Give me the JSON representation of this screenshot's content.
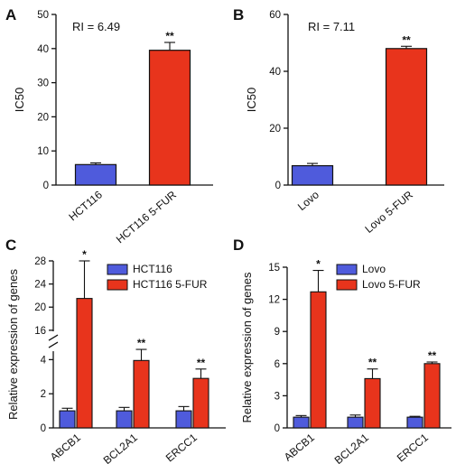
{
  "chart_data": [
    {
      "panel": "A",
      "type": "bar",
      "categories": [
        "HCT116",
        "HCT116 5-FUR"
      ],
      "values": [
        6.0,
        39.5
      ],
      "errors": [
        0.5,
        2.3
      ],
      "significance": [
        "",
        "**"
      ],
      "colors": [
        "#4f5bdc",
        "#e8341c"
      ],
      "ylabel": "IC50",
      "ylim": [
        0,
        50
      ],
      "yticks": [
        0,
        10,
        20,
        30,
        40,
        50
      ],
      "annotation": "RI = 6.49",
      "grid": false
    },
    {
      "panel": "B",
      "type": "bar",
      "categories": [
        "Lovo",
        "Lovo 5-FUR"
      ],
      "values": [
        6.8,
        48.0
      ],
      "errors": [
        0.8,
        0.8
      ],
      "significance": [
        "",
        "**"
      ],
      "colors": [
        "#4f5bdc",
        "#e8341c"
      ],
      "ylabel": "IC50",
      "ylim": [
        0,
        60
      ],
      "yticks": [
        0,
        20,
        40,
        60
      ],
      "annotation": "RI = 7.11",
      "grid": false
    },
    {
      "panel": "C",
      "type": "bar",
      "categories": [
        "ABCB1",
        "BCL2A1",
        "ERCC1"
      ],
      "series": [
        {
          "name": "HCT116",
          "values": [
            1.0,
            1.0,
            1.0
          ],
          "errors": [
            0.15,
            0.2,
            0.25
          ],
          "color": "#4f5bdc"
        },
        {
          "name": "HCT116 5-FUR",
          "values": [
            21.5,
            3.95,
            2.9
          ],
          "errors": [
            6.5,
            0.7,
            0.55
          ],
          "color": "#e8341c"
        }
      ],
      "significance": [
        "*",
        "**",
        "**"
      ],
      "ylabel": "Relative expression of genes",
      "ylim": [
        0,
        28
      ],
      "axis_break": [
        4.6,
        15.5
      ],
      "yticks": [
        0,
        2,
        4,
        16,
        20,
        24,
        28
      ],
      "legend_position": "top-right",
      "grid": false
    },
    {
      "panel": "D",
      "type": "bar",
      "categories": [
        "ABCB1",
        "BCL2A1",
        "ERCC1"
      ],
      "series": [
        {
          "name": "Lovo",
          "values": [
            1.0,
            1.0,
            1.0
          ],
          "errors": [
            0.15,
            0.2,
            0.08
          ],
          "color": "#4f5bdc"
        },
        {
          "name": "Lovo 5-FUR",
          "values": [
            12.7,
            4.6,
            6.0
          ],
          "errors": [
            2.0,
            0.9,
            0.15
          ],
          "color": "#e8341c"
        }
      ],
      "significance": [
        "*",
        "**",
        "**"
      ],
      "ylabel": "Relative expression of genes",
      "ylim": [
        0,
        15
      ],
      "yticks": [
        0,
        3,
        6,
        9,
        12,
        15
      ],
      "legend_position": "top-right",
      "grid": false
    }
  ]
}
